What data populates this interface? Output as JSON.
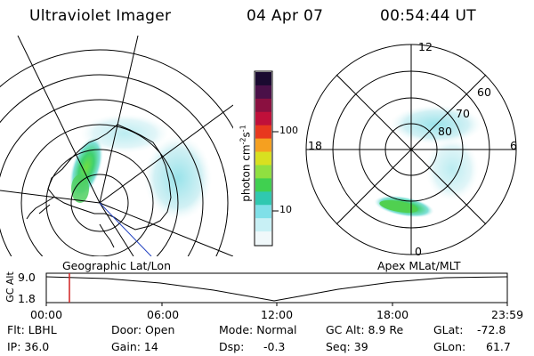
{
  "header": {
    "instrument": "Ultraviolet Imager",
    "date": "04 Apr 07",
    "time": "00:54:44 UT"
  },
  "colorbar": {
    "unit_label": "photon cm",
    "unit_sup1": "-2",
    "unit_mid": "s",
    "unit_sup2": "-1",
    "ticks": [
      "100",
      "10"
    ],
    "colors": [
      "#1a0a30",
      "#4a1048",
      "#8a1040",
      "#c0103a",
      "#e8381e",
      "#f5a020",
      "#d8e020",
      "#90e040",
      "#40d050",
      "#30c8b0",
      "#80e0e8",
      "#c8f0f5",
      "#f0f8fa"
    ]
  },
  "geo_panel": {
    "caption": "Geographic Lat/Lon"
  },
  "mlt_panel": {
    "caption": "Apex MLat/MLT",
    "mlt_labels": {
      "top": "12",
      "bottom": "0",
      "left": "18",
      "right": "6"
    },
    "lat_labels": [
      "60",
      "70",
      "80"
    ]
  },
  "altitude_plot": {
    "ylabel": "GC Alt",
    "yticks": [
      "9.0",
      "1.8"
    ],
    "xticks": [
      "00:00",
      "06:00",
      "12:00",
      "18:00",
      "23:59"
    ],
    "marker_color": "#d02020"
  },
  "status": {
    "flt": "Flt: LBHL",
    "ip": "IP: 36.0",
    "door": "Door: Open",
    "gain": "Gain: 14",
    "mode": "Mode: Normal",
    "dsp_label": "Dsp:",
    "dsp_value": "-0.3",
    "gc_alt": "GC Alt: 8.9 Re",
    "seq": "Seq: 39",
    "glat_label": "GLat:",
    "glat_value": "-72.8",
    "glon_label": "GLon:",
    "glon_value": "61.7"
  }
}
